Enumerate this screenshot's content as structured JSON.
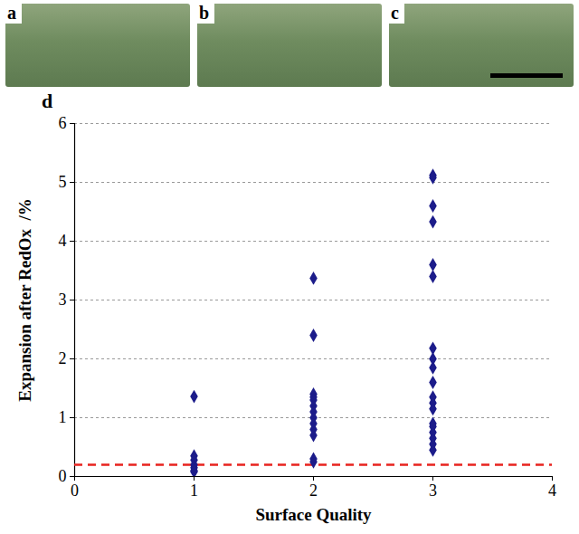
{
  "panels": [
    "a",
    "b",
    "c"
  ],
  "chart_data": {
    "type": "scatter",
    "panel_label": "d",
    "x": [
      1,
      1,
      1,
      1,
      1,
      1,
      1,
      2,
      2,
      2,
      2,
      2,
      2,
      2,
      2,
      2,
      2,
      2,
      2,
      2,
      3,
      3,
      3,
      3,
      3,
      3,
      3,
      3,
      3,
      3,
      3,
      3,
      3,
      3,
      3,
      3,
      3,
      3,
      3
    ],
    "values": [
      1.36,
      0.35,
      0.28,
      0.2,
      0.15,
      0.1,
      0.08,
      3.37,
      2.4,
      1.4,
      1.35,
      1.3,
      1.2,
      1.1,
      1.0,
      0.9,
      0.8,
      0.7,
      0.3,
      0.25,
      5.12,
      5.08,
      4.6,
      4.33,
      3.6,
      3.4,
      2.18,
      2.0,
      1.85,
      1.6,
      1.35,
      1.25,
      1.15,
      0.9,
      0.85,
      0.75,
      0.65,
      0.55,
      0.45
    ],
    "color": "#1c1c8a",
    "marker": "diamond",
    "xlabel": "Surface Quality",
    "ylabel": "Expansion after RedOx  /%",
    "xlim": [
      0,
      4
    ],
    "xticks": [
      0,
      1,
      2,
      3,
      4
    ],
    "ylim": [
      0,
      6
    ],
    "yticks": [
      0,
      1,
      2,
      3,
      4,
      5,
      6
    ],
    "grid": true,
    "reference_line": {
      "y": 0.2,
      "color": "#e8231f",
      "line_style": "dashed"
    }
  }
}
